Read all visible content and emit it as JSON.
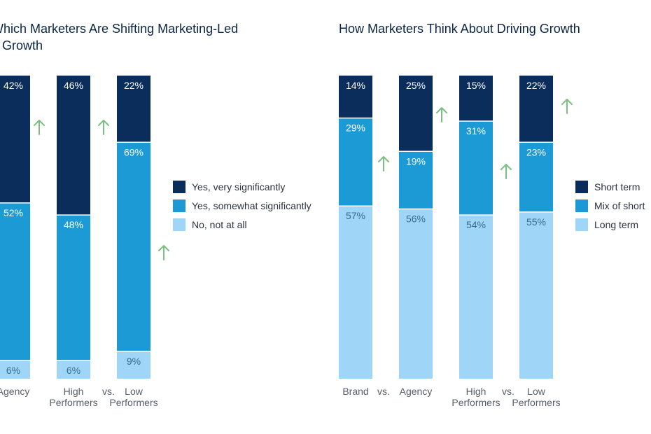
{
  "colors": {
    "dark_navy": "#0b2d5b",
    "medium_blue": "#1c9ad6",
    "light_blue": "#9fd6f7",
    "arrow_green": "#7bc081",
    "title_text": "#0b2545",
    "axis_text": "#555f6b"
  },
  "chart_data": [
    {
      "type": "bar",
      "stacked": true,
      "title": "Which Marketers Are Shifting Marketing-Led\no Growth",
      "categories": [
        "Agency",
        "High\nPerformers",
        "Low\nPerformers"
      ],
      "separators": [
        "",
        "vs."
      ],
      "series": [
        {
          "name": "No, not at all",
          "values": [
            6,
            6,
            9
          ]
        },
        {
          "name": "Yes, somewhat significantly",
          "values": [
            52,
            48,
            69
          ]
        },
        {
          "name": "Yes, very significantly",
          "values": [
            42,
            46,
            22
          ]
        }
      ],
      "labels": [
        [
          "6%",
          "6%",
          "9%"
        ],
        [
          "52%",
          "48%",
          "69%"
        ],
        [
          "42%",
          "46%",
          "22%"
        ]
      ],
      "ylim": [
        0,
        100
      ],
      "legend": [
        "Yes, very significantly",
        "Yes, somewhat significantly",
        "No, not at all"
      ],
      "legend_position": "right",
      "up_arrow_count": 3
    },
    {
      "type": "bar",
      "stacked": true,
      "title": "How Marketers Think About Driving Growth",
      "categories": [
        "Brand",
        "Agency",
        "High\nPerformers",
        "Low\nPerformers"
      ],
      "separators": [
        "vs.",
        "",
        "vs."
      ],
      "series": [
        {
          "name": "Long term",
          "values": [
            57,
            56,
            54,
            55
          ]
        },
        {
          "name": "Mix of short",
          "values": [
            29,
            19,
            31,
            23
          ]
        },
        {
          "name": "Short term",
          "values": [
            14,
            25,
            15,
            22
          ]
        }
      ],
      "labels": [
        [
          "57%",
          "56%",
          "54%",
          "55%"
        ],
        [
          "29%",
          "19%",
          "31%",
          "23%"
        ],
        [
          "14%",
          "25%",
          "15%",
          "22%"
        ]
      ],
      "ylim": [
        0,
        100
      ],
      "legend": [
        "Short term",
        "Mix of short",
        "Long term"
      ],
      "legend_position": "right",
      "up_arrow_count": 4
    }
  ]
}
